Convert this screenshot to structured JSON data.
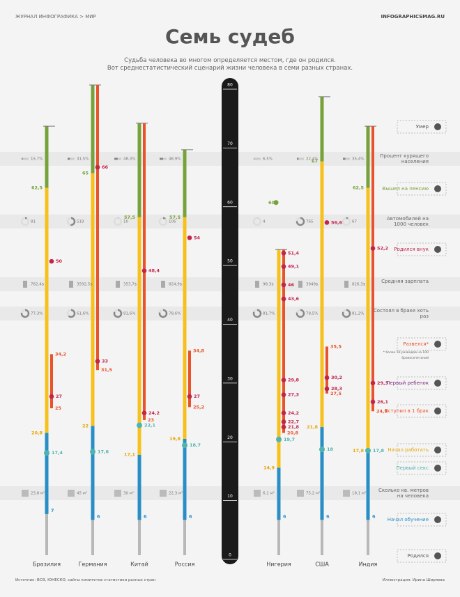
{
  "chart_data": {
    "type": "timeline",
    "breadcrumb": "ЖУРНАЛ ИНФОГРАФИКА > МИР",
    "site": "INFOGRAPHICSMAG.RU",
    "title": "Семь судеб",
    "subtitle": [
      "Судьба человека во многом определяется местом, где он родился.",
      "Вот среднестатистический сценарий жизни человека в семи разных странах."
    ],
    "ylim": [
      0,
      80
    ],
    "yticks": [
      0,
      10,
      20,
      30,
      40,
      50,
      60,
      70,
      80
    ],
    "colors": {
      "childhood": "#b8b8b8",
      "study": "#2a8ec6",
      "work": "#f7c11d",
      "pension": "#77a23b",
      "family": "#e8532b",
      "sex": "#4fb3b0",
      "event": "#c3244a"
    },
    "countries": [
      {
        "name": "Бразилия",
        "school": 7,
        "first_sex": {
          "value": 17.4,
          "label": "17,4"
        },
        "work": {
          "value": 20.8,
          "label": "20,8"
        },
        "marriage": 25,
        "children": [
          27
        ],
        "divorce": {
          "value": 34.2,
          "label": "34,2"
        },
        "grandchildren": [
          50
        ],
        "retire": {
          "value": 62.5,
          "label": "62,5"
        },
        "death": 73
      },
      {
        "name": "Германия",
        "school": 6,
        "first_sex": {
          "value": 17.6,
          "label": "17,6"
        },
        "work": 22,
        "marriage": {
          "value": 31.5,
          "label": "31,5"
        },
        "children": [
          33
        ],
        "divorce": null,
        "grandchildren": [
          66
        ],
        "retire": 65,
        "death": 80
      },
      {
        "name": "Китай",
        "school": 6,
        "first_sex": {
          "value": 22.1,
          "label": "22,1"
        },
        "work": {
          "value": 17.1,
          "label": "17,1"
        },
        "marriage": 23,
        "children": [
          {
            "value": 24.2,
            "label": "24,2"
          }
        ],
        "divorce": null,
        "grandchildren": [
          {
            "value": 48.4,
            "label": "48,4"
          }
        ],
        "retire": {
          "value": 57.5,
          "label": "57,5"
        },
        "death": 73.5
      },
      {
        "name": "Россия",
        "school": 6,
        "first_sex": {
          "value": 18.7,
          "label": "18,7"
        },
        "work": {
          "value": 19.8,
          "label": "19,8"
        },
        "marriage": {
          "value": 25.2,
          "label": "25,2"
        },
        "children": [
          27
        ],
        "divorce": {
          "value": 34.8,
          "label": "34,8"
        },
        "grandchildren": [
          54
        ],
        "retire": {
          "value": 57.5,
          "label": "57,5"
        },
        "death": 69
      },
      {
        "name": "Нигерия",
        "school": 6,
        "first_sex": {
          "value": 19.7,
          "label": "19,7"
        },
        "work": {
          "value": 14.9,
          "label": "14,9"
        },
        "marriage": {
          "value": 20.8,
          "label": "20,8"
        },
        "children": [
          {
            "value": 21.8,
            "label": "21,8"
          },
          {
            "value": 22.7,
            "label": "22,7"
          },
          {
            "value": 24.2,
            "label": "24,2"
          },
          {
            "value": 27.3,
            "label": "27,3"
          },
          {
            "value": 29.8,
            "label": "29,8"
          }
        ],
        "divorce": null,
        "grandchildren": [
          {
            "value": 43.6,
            "label": "43,6"
          },
          46,
          {
            "value": 49.1,
            "label": "49,1"
          },
          {
            "value": 51.4,
            "label": "51,4"
          }
        ],
        "retire": 60,
        "death": 52
      },
      {
        "name": "США",
        "school": 6,
        "first_sex": 18,
        "work": {
          "value": 21.8,
          "label": "21,8"
        },
        "marriage": {
          "value": 27.5,
          "label": "27,5"
        },
        "children": [
          {
            "value": 28.3,
            "label": "28,3"
          },
          {
            "value": 30.2,
            "label": "30,2"
          }
        ],
        "divorce": {
          "value": 35.5,
          "label": "35,5"
        },
        "grandchildren": [
          {
            "value": 56.6,
            "label": "56,6"
          }
        ],
        "retire": 67,
        "death": 78
      },
      {
        "name": "Индия",
        "school": 6,
        "first_sex": {
          "value": 17.8,
          "label": "17,8"
        },
        "work": {
          "value": 17.8,
          "label": "17,8"
        },
        "marriage": {
          "value": 24.5,
          "label": "24,5"
        },
        "children": [
          {
            "value": 26.1,
            "label": "26,1"
          },
          {
            "value": 29.3,
            "label": "29,3"
          }
        ],
        "divorce": null,
        "grandchildren": [
          {
            "value": 52.2,
            "label": "52,2"
          }
        ],
        "retire": {
          "value": 62.5,
          "label": "62,5"
        },
        "death": 73
      }
    ],
    "stats": [
      {
        "label": "Процент курящего населения",
        "values": [
          {
            "value": 15.7,
            "label": "15,7%"
          },
          {
            "value": 31.5,
            "label": "31,5%"
          },
          {
            "value": 48.3,
            "label": "48,3%"
          },
          {
            "value": 48.9,
            "label": "48,9%"
          },
          {
            "value": 6.5,
            "label": "6,5%"
          },
          {
            "value": 22.4,
            "label": "22,4%"
          },
          {
            "value": 35.4,
            "label": "35,4%"
          }
        ]
      },
      {
        "label": "Автомобилей на 1000 человек",
        "values": [
          81,
          519,
          10,
          106,
          4,
          765,
          67
        ]
      },
      {
        "label": "Средняя зарплата",
        "values": [
          {
            "value": 782.4,
            "label": "782,4$"
          },
          {
            "value": 3592.5,
            "label": "3592,5$"
          },
          {
            "value": 353.7,
            "label": "353,7$"
          },
          {
            "value": 824.9,
            "label": "824,9$"
          },
          {
            "value": 98.3,
            "label": "98,3$"
          },
          {
            "value": 3949,
            "label": "3949$"
          },
          {
            "value": 826.3,
            "label": "826,3$"
          }
        ]
      },
      {
        "label": "Состоял в браке хоть раз",
        "values": [
          {
            "value": 77.3,
            "label": "77,3%"
          },
          {
            "value": 61.6,
            "label": "61,6%"
          },
          {
            "value": 81.6,
            "label": "81,6%"
          },
          {
            "value": 78.6,
            "label": "78,6%"
          },
          {
            "value": 81.7,
            "label": "81,7%"
          },
          {
            "value": 78.5,
            "label": "78,5%"
          },
          {
            "value": 81.2,
            "label": "81,2%"
          }
        ]
      },
      {
        "label": "Сколько кв. метров на человека",
        "values": [
          {
            "value": 23.8,
            "label": "23,8 м²"
          },
          {
            "value": 45,
            "label": "45 м²"
          },
          {
            "value": 30,
            "label": "30 м²"
          },
          {
            "value": 22.3,
            "label": "22,3 м²"
          },
          {
            "value": 6.1,
            "label": "6,1 м²"
          },
          {
            "value": 75.2,
            "label": "75,2 м²"
          },
          {
            "value": 18.1,
            "label": "18,1 м²"
          }
        ]
      }
    ],
    "legend": [
      "Умер",
      "Вышел на пенсию",
      "Родился внук",
      "Развелся*",
      "Первый ребенок",
      "Вступил в 1 брак",
      "Начал работать",
      "Первый секс",
      "Начал обучение",
      "Родился"
    ],
    "legend_note": "* более 50 разводов на 100 бракосочетаний",
    "source": "Источник: ВОЗ, ЮНЕСКО, сайты комитетов статистики разных стран",
    "credit": "Иллюстрация: Ирина Ширяева"
  }
}
